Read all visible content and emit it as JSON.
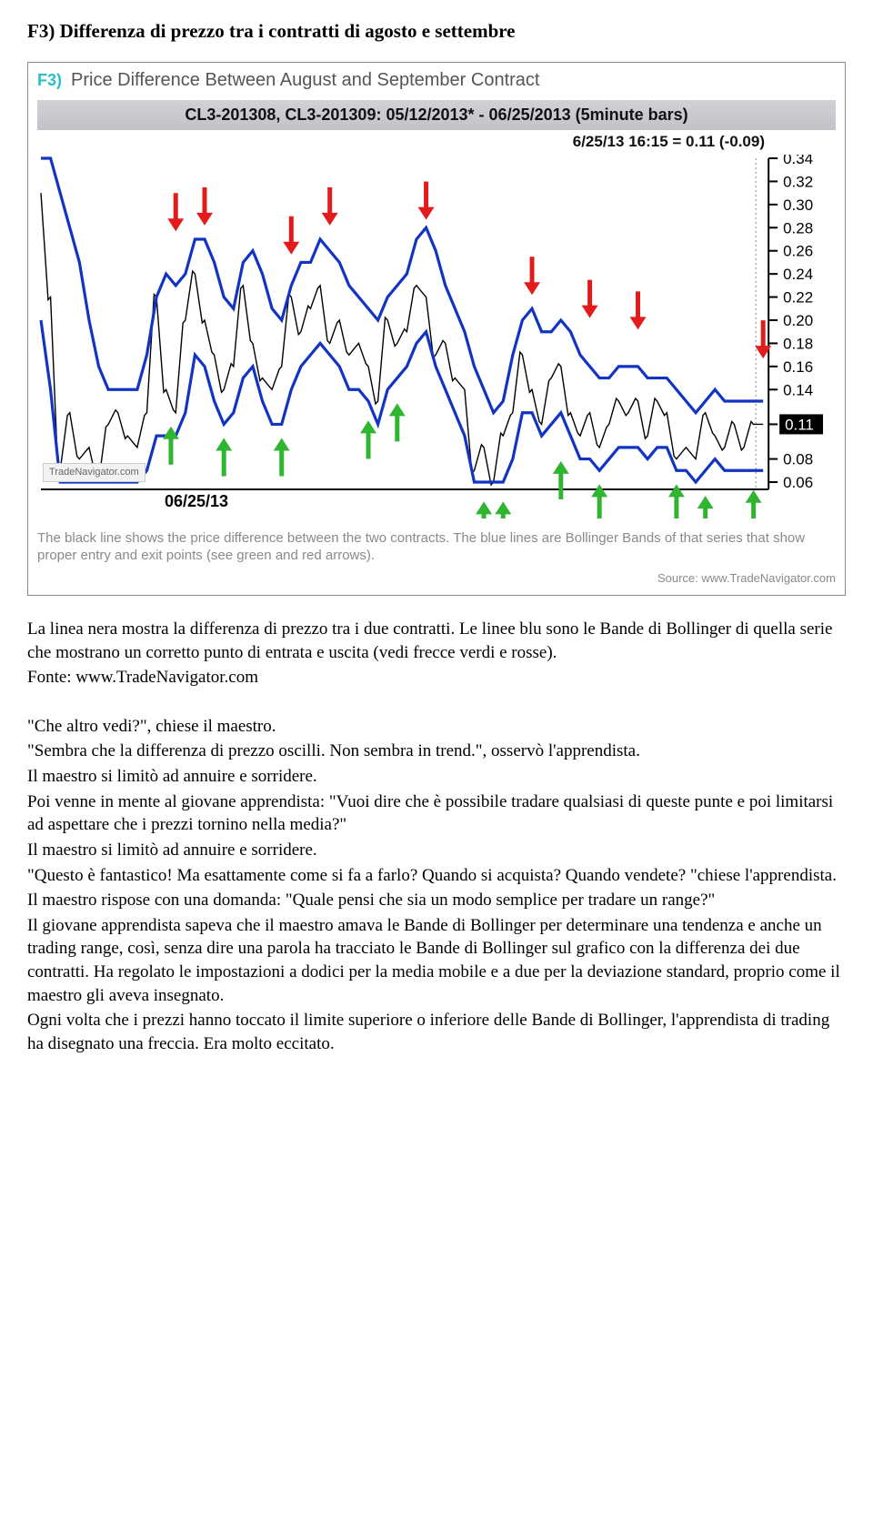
{
  "doc": {
    "title": "F3) Differenza di prezzo tra i contratti di agosto e settembre"
  },
  "figure": {
    "tag": "F3)",
    "title": "Price Difference Between August and September Contract",
    "banner": "CL3-201308, CL3-201309: 05/12/2013* - 06/25/2013 (5minute bars)",
    "subbanner": "6/25/13 16:15 = 0.11 (-0.09)",
    "caption": "The black line shows the price difference between the two contracts. The blue lines are Bollinger Bands of that series that show proper entry and exit points (see green and red arrows).",
    "source": "Source: www.TradeNavigator.com",
    "watermark": "TradeNavigator.com",
    "x_date": "06/25/13",
    "chart": {
      "y_ticks": [
        0.34,
        0.32,
        0.3,
        0.28,
        0.26,
        0.24,
        0.22,
        0.2,
        0.18,
        0.16,
        0.14,
        0.11,
        0.08,
        0.06
      ],
      "current_label": "0.11",
      "colors": {
        "price": "#000000",
        "band": "#1134c3",
        "arrow_up": "#2fb52f",
        "arrow_down": "#e21b1b",
        "axis": "#000000",
        "dotted": "#888888"
      },
      "ylim": [
        0.06,
        0.34
      ],
      "price_pts": [
        0.31,
        0.22,
        0.07,
        0.12,
        0.08,
        0.09,
        0.06,
        0.11,
        0.12,
        0.1,
        0.09,
        0.12,
        0.22,
        0.14,
        0.12,
        0.2,
        0.24,
        0.2,
        0.17,
        0.14,
        0.16,
        0.23,
        0.18,
        0.15,
        0.14,
        0.16,
        0.22,
        0.19,
        0.21,
        0.23,
        0.18,
        0.2,
        0.17,
        0.18,
        0.16,
        0.13,
        0.2,
        0.18,
        0.19,
        0.23,
        0.22,
        0.17,
        0.18,
        0.15,
        0.14,
        0.07,
        0.09,
        0.06,
        0.1,
        0.12,
        0.17,
        0.14,
        0.11,
        0.15,
        0.16,
        0.12,
        0.1,
        0.12,
        0.09,
        0.11,
        0.13,
        0.12,
        0.13,
        0.1,
        0.13,
        0.12,
        0.08,
        0.09,
        0.08,
        0.12,
        0.1,
        0.09,
        0.11,
        0.09,
        0.11,
        0.11
      ],
      "upper_pts": [
        0.34,
        0.34,
        0.31,
        0.28,
        0.25,
        0.2,
        0.16,
        0.14,
        0.14,
        0.14,
        0.14,
        0.17,
        0.22,
        0.24,
        0.23,
        0.24,
        0.27,
        0.27,
        0.25,
        0.22,
        0.21,
        0.25,
        0.26,
        0.24,
        0.21,
        0.2,
        0.23,
        0.25,
        0.25,
        0.27,
        0.26,
        0.25,
        0.23,
        0.22,
        0.21,
        0.2,
        0.22,
        0.23,
        0.24,
        0.27,
        0.28,
        0.26,
        0.23,
        0.21,
        0.19,
        0.16,
        0.14,
        0.12,
        0.13,
        0.17,
        0.2,
        0.21,
        0.19,
        0.19,
        0.2,
        0.19,
        0.17,
        0.16,
        0.15,
        0.15,
        0.16,
        0.16,
        0.16,
        0.15,
        0.15,
        0.15,
        0.14,
        0.13,
        0.12,
        0.13,
        0.14,
        0.13,
        0.13,
        0.13,
        0.13,
        0.13
      ],
      "lower_pts": [
        0.2,
        0.14,
        0.06,
        0.06,
        0.06,
        0.06,
        0.06,
        0.06,
        0.06,
        0.06,
        0.06,
        0.07,
        0.1,
        0.1,
        0.1,
        0.12,
        0.17,
        0.16,
        0.13,
        0.11,
        0.12,
        0.15,
        0.16,
        0.13,
        0.11,
        0.11,
        0.14,
        0.16,
        0.17,
        0.18,
        0.17,
        0.16,
        0.14,
        0.14,
        0.13,
        0.11,
        0.14,
        0.15,
        0.16,
        0.18,
        0.19,
        0.16,
        0.14,
        0.12,
        0.1,
        0.06,
        0.06,
        0.06,
        0.06,
        0.08,
        0.12,
        0.12,
        0.1,
        0.11,
        0.12,
        0.1,
        0.08,
        0.08,
        0.07,
        0.08,
        0.09,
        0.09,
        0.09,
        0.08,
        0.09,
        0.09,
        0.07,
        0.07,
        0.06,
        0.07,
        0.08,
        0.07,
        0.07,
        0.07,
        0.07,
        0.07
      ],
      "red_arrows": [
        [
          14,
          0.28
        ],
        [
          17,
          0.285
        ],
        [
          26,
          0.26
        ],
        [
          30,
          0.285
        ],
        [
          40,
          0.29
        ],
        [
          51,
          0.225
        ],
        [
          57,
          0.205
        ],
        [
          62,
          0.195
        ],
        [
          75,
          0.17
        ]
      ],
      "green_arrows": [
        [
          13.5,
          0.105
        ],
        [
          19,
          0.095
        ],
        [
          25,
          0.095
        ],
        [
          34,
          0.11
        ],
        [
          37,
          0.125
        ],
        [
          46,
          0.04
        ],
        [
          48,
          0.04
        ],
        [
          54,
          0.075
        ],
        [
          58,
          0.055
        ],
        [
          66,
          0.055
        ],
        [
          69,
          0.045
        ],
        [
          74,
          0.05
        ]
      ]
    }
  },
  "body": {
    "p1": "La linea nera mostra la differenza di prezzo tra i due contratti. Le linee blu sono le Bande di Bollinger di quella serie che mostrano un corretto punto di entrata e uscita (vedi frecce verdi e rosse).",
    "p2": "Fonte: www.TradeNavigator.com",
    "p3": "\"Che altro vedi?\", chiese il maestro.",
    "p4": "\"Sembra che la differenza di prezzo oscilli. Non sembra in trend.\", osservò l'apprendista.",
    "p5": "Il maestro si limitò ad annuire e sorridere.",
    "p6": "Poi venne in mente al giovane apprendista: \"Vuoi dire che è possibile tradare qualsiasi di queste punte e poi limitarsi ad aspettare che i prezzi tornino nella media?\"",
    "p7": "Il maestro si limitò ad annuire e sorridere.",
    "p8": "\"Questo è fantastico! Ma esattamente come si fa a farlo? Quando si acquista? Quando vendete? \"chiese l'apprendista.",
    "p9": "Il maestro rispose con una domanda: \"Quale pensi che sia un modo semplice per tradare un range?\"",
    "p10": "Il giovane apprendista sapeva che il maestro amava le Bande di Bollinger per determinare una tendenza e anche un trading range, così, senza dire una parola ha tracciato le Bande di Bollinger sul grafico con la differenza dei due contratti. Ha regolato le impostazioni a dodici per la media mobile e a due per la deviazione standard, proprio come il maestro gli aveva insegnato.",
    "p11": "Ogni volta che i prezzi hanno toccato il limite superiore o inferiore delle Bande di Bollinger, l'apprendista di trading ha disegnato una freccia. Era molto eccitato."
  }
}
